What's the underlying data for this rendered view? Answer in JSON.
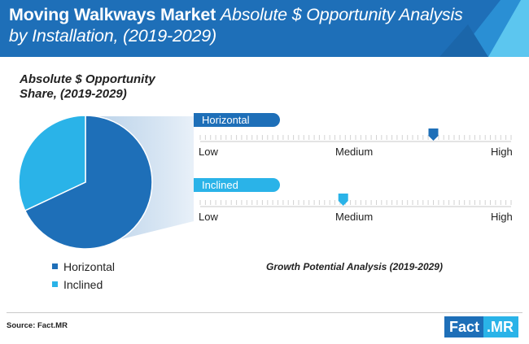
{
  "header": {
    "title_bold": "Moving Walkways Market",
    "title_italic": "Absolute $ Opportunity Analysis by Installation, (2019-2029)"
  },
  "pie": {
    "title_line1": "Absolute $ Opportunity",
    "title_line2": "Share, (2019-2029)"
  },
  "chart_data": [
    {
      "type": "pie",
      "title": "Absolute $ Opportunity Share, (2019-2029)",
      "categories": [
        "Horizontal",
        "Inclined"
      ],
      "values": [
        68,
        32
      ],
      "colors": [
        "#1e6fb8",
        "#2ab3e8"
      ],
      "legend": "bottom"
    },
    {
      "type": "scatter",
      "title": "Growth Potential Analysis (2019-2029)",
      "scale_labels": [
        "Low",
        "Medium",
        "High"
      ],
      "series": [
        {
          "name": "Horizontal",
          "value": 0.75,
          "color": "#1e6fb8"
        },
        {
          "name": "Inclined",
          "value": 0.46,
          "color": "#2ab3e8"
        }
      ]
    }
  ],
  "growth_title": "Growth Potential Analysis (2019-2029)",
  "source": "Source: Fact.MR",
  "logo": {
    "part1": "Fact",
    "part2": ".MR"
  }
}
